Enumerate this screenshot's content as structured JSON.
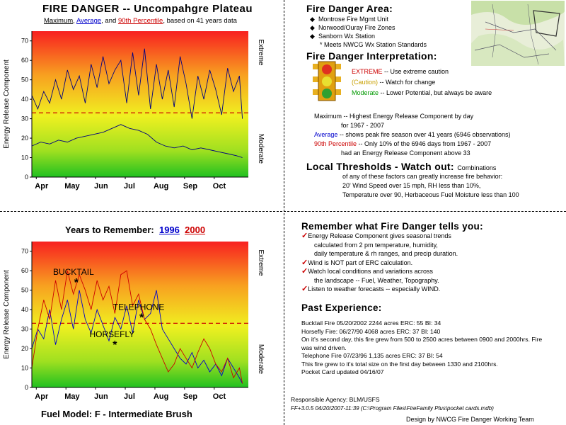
{
  "top_chart": {
    "title": "FIRE DANGER -- Uncompahgre Plateau",
    "subtitle": {
      "maximum": "Maximum",
      "sep1": ",",
      "average": "Average",
      "sep2": ", and",
      "percentile": "90th Percentile",
      "rest": ", based on 41 years data"
    },
    "ylabel": "Energy Release Component",
    "right_top": "Extreme",
    "right_bottom": "Moderate"
  },
  "bottom_chart": {
    "title_prefix": "Years to Remember:",
    "year1": "1996",
    "year2": "2000",
    "ylabel": "Energy Release Component",
    "right_top": "Extreme",
    "right_bottom": "Moderate",
    "fuel_model": "Fuel Model: F - Intermediate Brush"
  },
  "chart_data": [
    {
      "type": "line",
      "title": "FIRE DANGER -- Uncompahgre Plateau",
      "ylabel": "Energy Release Component",
      "ylim": [
        0,
        75
      ],
      "yticks": [
        0,
        10,
        20,
        30,
        40,
        50,
        60,
        70
      ],
      "xlim": [
        0,
        7.3
      ],
      "xticks": [
        0.15,
        1.15,
        2.15,
        3.15,
        4.15,
        5.15,
        6.15
      ],
      "xtick_labels": [
        "Apr",
        "May",
        "Jun",
        "Jul",
        "Aug",
        "Sep",
        "Oct"
      ],
      "threshold": 33,
      "background": "gradient green (0) to yellow (30) to red (75)",
      "series": [
        {
          "name": "Maximum",
          "color": "#000080",
          "x": [
            0,
            0.2,
            0.4,
            0.6,
            0.8,
            1,
            1.2,
            1.4,
            1.6,
            1.8,
            2,
            2.2,
            2.4,
            2.6,
            2.8,
            3,
            3.2,
            3.4,
            3.6,
            3.8,
            4,
            4.2,
            4.4,
            4.6,
            4.8,
            5,
            5.2,
            5.4,
            5.6,
            5.8,
            6,
            6.2,
            6.4,
            6.6,
            6.8,
            7,
            7.1
          ],
          "y": [
            42,
            35,
            44,
            38,
            50,
            40,
            55,
            45,
            52,
            38,
            58,
            46,
            62,
            48,
            55,
            60,
            38,
            64,
            42,
            66,
            35,
            58,
            40,
            55,
            36,
            62,
            48,
            30,
            52,
            40,
            55,
            45,
            32,
            56,
            44,
            52,
            30
          ]
        },
        {
          "name": "Average",
          "color": "#000080",
          "x": [
            0,
            0.3,
            0.6,
            0.9,
            1.2,
            1.5,
            1.8,
            2.1,
            2.4,
            2.7,
            3,
            3.3,
            3.6,
            3.9,
            4.2,
            4.5,
            4.8,
            5.1,
            5.4,
            5.7,
            6,
            6.3,
            6.6,
            6.9,
            7.1
          ],
          "y": [
            16,
            18,
            17,
            19,
            18,
            20,
            21,
            22,
            23,
            25,
            27,
            25,
            24,
            22,
            18,
            16,
            15,
            16,
            14,
            15,
            14,
            13,
            12,
            11,
            10
          ]
        }
      ]
    },
    {
      "type": "line",
      "title": "Years to Remember: 1996 2000",
      "ylabel": "Energy Release Component",
      "ylim": [
        0,
        75
      ],
      "yticks": [
        0,
        10,
        20,
        30,
        40,
        50,
        60,
        70
      ],
      "xlim": [
        0,
        7.3
      ],
      "xticks": [
        0.15,
        1.15,
        2.15,
        3.15,
        4.15,
        5.15,
        6.15
      ],
      "xtick_labels": [
        "Apr",
        "May",
        "Jun",
        "Jul",
        "Aug",
        "Sep",
        "Oct"
      ],
      "threshold": 33,
      "annotations": [
        {
          "text": "BUCKTAIL",
          "x": 1.5,
          "y": 55
        },
        {
          "text": "TELEPHONE",
          "x": 3.7,
          "y": 37
        },
        {
          "text": "HORSEFLY",
          "x": 2.8,
          "y": 23
        }
      ],
      "series": [
        {
          "name": "1996",
          "color": "#0000cc",
          "x": [
            0,
            0.2,
            0.4,
            0.6,
            0.8,
            1,
            1.2,
            1.4,
            1.6,
            1.8,
            2,
            2.2,
            2.4,
            2.6,
            2.8,
            3,
            3.2,
            3.4,
            3.6,
            3.8,
            4,
            4.2,
            4.4,
            4.6,
            4.8,
            5,
            5.2,
            5.4,
            5.6,
            5.8,
            6,
            6.2,
            6.4,
            6.6,
            6.8,
            7,
            7.1
          ],
          "y": [
            20,
            30,
            25,
            40,
            22,
            35,
            45,
            30,
            50,
            35,
            28,
            40,
            32,
            24,
            36,
            30,
            42,
            28,
            45,
            35,
            38,
            50,
            30,
            25,
            20,
            15,
            12,
            18,
            10,
            14,
            8,
            12,
            6,
            15,
            10,
            5,
            2
          ]
        },
        {
          "name": "2000",
          "color": "#cc0000",
          "x": [
            0,
            0.2,
            0.4,
            0.6,
            0.8,
            1,
            1.2,
            1.4,
            1.6,
            1.8,
            2,
            2.2,
            2.4,
            2.6,
            2.8,
            3,
            3.2,
            3.4,
            3.6,
            3.8,
            4,
            4.2,
            4.4,
            4.6,
            4.8,
            5,
            5.2,
            5.4,
            5.6,
            5.8,
            6,
            6.2,
            6.4,
            6.6,
            6.8,
            7,
            7.1
          ],
          "y": [
            10,
            30,
            45,
            35,
            55,
            40,
            60,
            48,
            58,
            50,
            40,
            55,
            45,
            52,
            38,
            58,
            60,
            42,
            48,
            35,
            30,
            22,
            15,
            8,
            12,
            20,
            15,
            10,
            18,
            25,
            20,
            12,
            8,
            15,
            5,
            10,
            2
          ]
        }
      ]
    }
  ],
  "area": {
    "title": "Fire Danger Area:",
    "items": [
      "Montrose Fire Mgmt Unit",
      "Norwood/Ouray Fire Zones",
      "Sanborn Wx Station"
    ],
    "note": "* Meets NWCG Wx Station Standards"
  },
  "interp": {
    "title": "Fire Danger Interpretation:",
    "extreme_word": "EXTREME",
    "extreme_text": " -- Use extreme caution",
    "caution_word": "(Caution)",
    "caution_text": " -- Watch for change",
    "moderate_word": "Moderate",
    "moderate_text": " -- Lower Potential, but always be aware",
    "max_word": "Maximum",
    "max_text1": " -- Highest Energy Release Component by day",
    "max_text2": "for 1967 - 2007",
    "avg_word": "Average",
    "avg_text": " -- shows peak fire season over 41 years (6946 observations)",
    "pct_word": "90th Percentile",
    "pct_text1": " -- Only 10% of the 6946 days from 1967 - 2007",
    "pct_text2": "had an Energy Release Component above 33"
  },
  "local": {
    "title": "Local Thresholds - Watch out:",
    "intro": "Combinations",
    "line1": "of any of these factors can greatly increase fire behavior:",
    "line2": "20' Wind Speed over 15 mph, RH less than 10%,",
    "line3": "Temperature over 90, Herbaceous Fuel Moisture less than 100"
  },
  "remember": {
    "title": "Remember what Fire Danger tells you:",
    "items": [
      {
        "lines": [
          "Energy Release Component gives seasonal trends",
          "calculated from 2 pm temperature, humidity,",
          "daily temperature & rh ranges, and precip duration."
        ]
      },
      {
        "lines": [
          "Wind is NOT part of ERC calculation."
        ]
      },
      {
        "lines": [
          "Watch local conditions and variations across",
          "the landscape -- Fuel, Weather, Topography."
        ]
      },
      {
        "lines": [
          "Listen to weather forecasts -- especially WIND."
        ]
      }
    ]
  },
  "past": {
    "title": "Past Experience:",
    "lines": [
      "Bucktail Fire 05/20/2002   2244 acres   ERC: 55  BI: 34",
      "Horsefly Fire: 06/27/90   4068 acres    ERC: 37  BI: 140",
      "On it's second day, this fire grew from 500 to 2500 acres between 0900 and 2000hrs. Fire",
      "was wind driven.",
      "Telephone Fire 07/23/96   1,135 acres   ERC: 37  BI: 54",
      "This fire grew to it's total size on the first day between 1330 and 2100hrs.",
      "Pocket Card updated 04/16/07"
    ]
  },
  "footer": {
    "agency": "Responsible Agency: BLM/USFS",
    "software": "FF+3.0.5 04/20/2007-11:39 (C:\\Program Files\\FireFamily Plus\\pocket cards.mdb)",
    "design": "Design by NWCG Fire Danger Working Team"
  },
  "colors": {
    "red": "#cc0000",
    "blue": "#0000cc",
    "navy": "#000080",
    "green": "#009900",
    "caution": "#c8a000"
  }
}
